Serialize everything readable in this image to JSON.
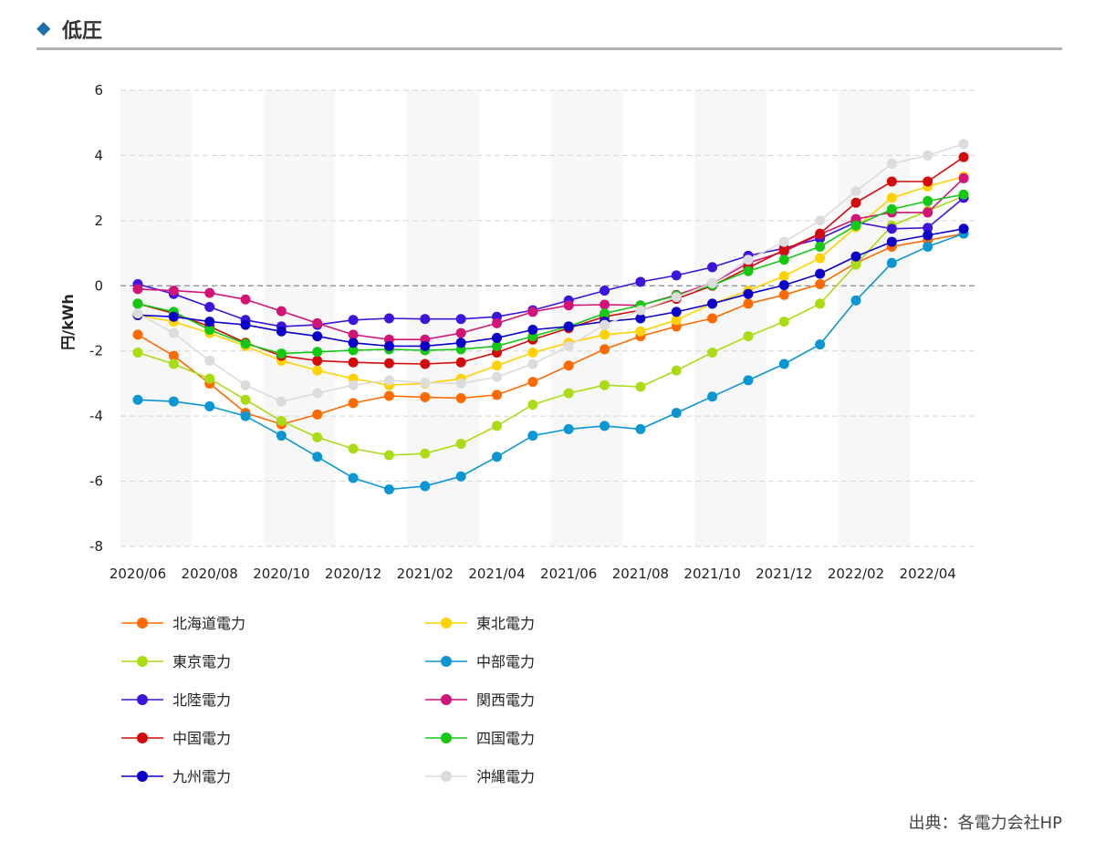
{
  "header": {
    "title": "低圧",
    "icon": "diamond-icon"
  },
  "source": "出典：各電力会社HP",
  "chart_data": {
    "type": "line",
    "title": "",
    "ylabel": "円/kWh",
    "xlabel": "",
    "ylim": [
      -8,
      6
    ],
    "yticks": [
      -8,
      -6,
      -4,
      -2,
      0,
      2,
      4,
      6
    ],
    "grid": true,
    "legend_position": "bottom",
    "x": [
      "2020/06",
      "2020/07",
      "2020/08",
      "2020/09",
      "2020/10",
      "2020/11",
      "2020/12",
      "2021/01",
      "2021/02",
      "2021/03",
      "2021/04",
      "2021/05",
      "2021/06",
      "2021/07",
      "2021/08",
      "2021/09",
      "2021/10",
      "2021/11",
      "2021/12",
      "2022/01",
      "2022/02",
      "2022/03",
      "2022/04",
      "2022/05"
    ],
    "xtick_labels": [
      "2020/06",
      "2020/08",
      "2020/10",
      "2020/12",
      "2021/02",
      "2021/04",
      "2021/06",
      "2021/08",
      "2021/10",
      "2021/12",
      "2022/02",
      "2022/04"
    ],
    "series": [
      {
        "name": "北海道電力",
        "color": "#ff6a00",
        "values": [
          -1.5,
          -2.15,
          -3.0,
          -3.9,
          -4.25,
          -3.95,
          -3.6,
          -3.38,
          -3.42,
          -3.45,
          -3.35,
          -2.95,
          -2.45,
          -1.95,
          -1.55,
          -1.25,
          -1.0,
          -0.55,
          -0.28,
          0.05,
          0.7,
          1.2,
          1.4,
          1.6
        ]
      },
      {
        "name": "東北電力",
        "color": "#ffd200",
        "values": [
          -0.9,
          -1.1,
          -1.45,
          -1.85,
          -2.3,
          -2.6,
          -2.85,
          -3.05,
          -3.0,
          -2.85,
          -2.45,
          -2.05,
          -1.75,
          -1.5,
          -1.4,
          -1.05,
          -0.55,
          -0.15,
          0.3,
          0.85,
          1.8,
          2.7,
          3.05,
          3.35
        ]
      },
      {
        "name": "東京電力",
        "color": "#aadc14",
        "values": [
          -2.05,
          -2.4,
          -2.85,
          -3.5,
          -4.15,
          -4.65,
          -5.0,
          -5.2,
          -5.15,
          -4.85,
          -4.3,
          -3.65,
          -3.3,
          -3.05,
          -3.1,
          -2.6,
          -2.05,
          -1.55,
          -1.1,
          -0.55,
          0.65,
          1.85,
          2.3,
          2.75
        ]
      },
      {
        "name": "中部電力",
        "color": "#0a96d2",
        "values": [
          -3.5,
          -3.55,
          -3.7,
          -4.0,
          -4.6,
          -5.25,
          -5.9,
          -6.25,
          -6.15,
          -5.85,
          -5.25,
          -4.6,
          -4.4,
          -4.3,
          -4.4,
          -3.9,
          -3.4,
          -2.9,
          -2.4,
          -1.8,
          -0.45,
          0.7,
          1.2,
          1.6
        ]
      },
      {
        "name": "北陸電力",
        "color": "#3c14dc",
        "values": [
          0.05,
          -0.25,
          -0.65,
          -1.05,
          -1.25,
          -1.2,
          -1.05,
          -1.0,
          -1.02,
          -1.02,
          -0.95,
          -0.75,
          -0.45,
          -0.15,
          0.12,
          0.32,
          0.57,
          0.92,
          1.15,
          1.45,
          1.95,
          1.75,
          1.78,
          2.7
        ]
      },
      {
        "name": "関西電力",
        "color": "#d21478",
        "values": [
          -0.1,
          -0.15,
          -0.22,
          -0.42,
          -0.78,
          -1.15,
          -1.5,
          -1.65,
          -1.65,
          -1.45,
          -1.15,
          -0.8,
          -0.6,
          -0.58,
          -0.6,
          -0.28,
          0.08,
          0.7,
          1.05,
          1.58,
          2.05,
          2.25,
          2.25,
          3.3
        ]
      },
      {
        "name": "中国電力",
        "color": "#d20a0a",
        "values": [
          -0.55,
          -0.85,
          -1.25,
          -1.75,
          -2.15,
          -2.3,
          -2.35,
          -2.38,
          -2.4,
          -2.35,
          -2.05,
          -1.65,
          -1.3,
          -0.95,
          -0.75,
          -0.4,
          0.0,
          0.55,
          1.1,
          1.6,
          2.55,
          3.2,
          3.2,
          3.95
        ]
      },
      {
        "name": "四国電力",
        "color": "#14c814",
        "values": [
          -0.55,
          -0.8,
          -1.35,
          -1.78,
          -2.08,
          -2.03,
          -1.98,
          -1.95,
          -1.98,
          -1.95,
          -1.85,
          -1.55,
          -1.25,
          -0.85,
          -0.6,
          -0.3,
          0.02,
          0.45,
          0.8,
          1.2,
          1.85,
          2.35,
          2.6,
          2.8
        ]
      },
      {
        "name": "九州電力",
        "color": "#0a00c8",
        "values": [
          -0.9,
          -0.95,
          -1.1,
          -1.2,
          -1.4,
          -1.55,
          -1.75,
          -1.85,
          -1.85,
          -1.75,
          -1.6,
          -1.35,
          -1.25,
          -1.1,
          -1.0,
          -0.8,
          -0.55,
          -0.25,
          0.02,
          0.37,
          0.9,
          1.35,
          1.55,
          1.75
        ]
      },
      {
        "name": "沖縄電力",
        "color": "#dcdcdc",
        "values": [
          -0.85,
          -1.45,
          -2.3,
          -3.05,
          -3.55,
          -3.3,
          -3.05,
          -2.9,
          -2.98,
          -3.0,
          -2.8,
          -2.4,
          -1.85,
          -1.2,
          -0.75,
          -0.35,
          0.08,
          0.8,
          1.35,
          2.0,
          2.9,
          3.75,
          4.0,
          4.35
        ]
      }
    ]
  }
}
